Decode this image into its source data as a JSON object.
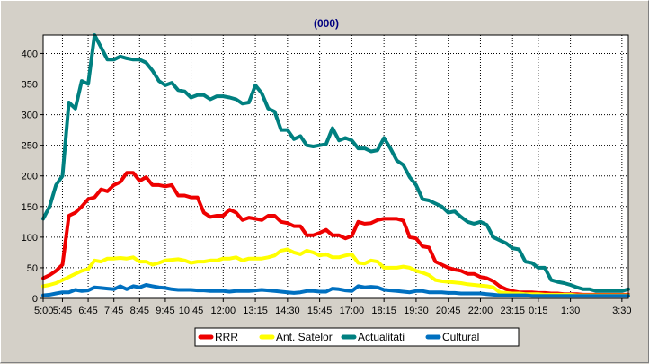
{
  "chart_data": {
    "type": "line",
    "title": "(000)",
    "xlabel": "",
    "ylabel": "",
    "ylim": [
      0,
      430
    ],
    "yticks": [
      0,
      50,
      100,
      150,
      200,
      250,
      300,
      350,
      400
    ],
    "grid": true,
    "legend_placement": "bottom",
    "x_tick_labels": [
      "5:00",
      "5:45",
      "6:45",
      "7:45",
      "8:45",
      "9:45",
      "10:45",
      "12:00",
      "13:15",
      "14:30",
      "15:45",
      "17:00",
      "18:15",
      "19:30",
      "20:45",
      "22:00",
      "23:15",
      "0:15",
      "1:30",
      "3:30"
    ],
    "x_tick_positions": [
      0,
      3,
      7,
      11,
      15,
      19,
      23,
      28,
      33,
      38,
      43,
      48,
      53,
      58,
      63,
      68,
      73,
      77,
      82,
      90
    ],
    "x_count": 92,
    "series": [
      {
        "name": "RRR",
        "color": "#ee0000",
        "values": [
          33,
          38,
          45,
          55,
          135,
          140,
          150,
          162,
          165,
          178,
          175,
          185,
          190,
          205,
          205,
          192,
          198,
          185,
          185,
          183,
          185,
          168,
          168,
          165,
          165,
          140,
          133,
          135,
          135,
          145,
          140,
          128,
          132,
          130,
          128,
          135,
          135,
          125,
          123,
          118,
          118,
          103,
          103,
          107,
          112,
          103,
          103,
          98,
          102,
          125,
          122,
          123,
          128,
          130,
          130,
          130,
          127,
          100,
          98,
          85,
          83,
          60,
          55,
          50,
          47,
          45,
          40,
          40,
          35,
          33,
          28,
          20,
          15,
          12,
          10,
          10,
          10,
          9,
          9,
          8,
          8,
          7,
          7,
          7,
          6,
          6,
          6,
          6,
          6,
          6,
          6,
          6
        ]
      },
      {
        "name": "Ant. Satelor",
        "color": "#ffff00",
        "values": [
          20,
          22,
          25,
          30,
          35,
          40,
          45,
          48,
          62,
          60,
          65,
          65,
          66,
          65,
          67,
          60,
          60,
          55,
          58,
          62,
          63,
          64,
          62,
          58,
          60,
          60,
          62,
          62,
          65,
          65,
          67,
          62,
          65,
          65,
          65,
          67,
          70,
          78,
          80,
          75,
          72,
          78,
          75,
          70,
          72,
          67,
          67,
          70,
          72,
          58,
          57,
          62,
          60,
          50,
          50,
          50,
          52,
          50,
          45,
          42,
          38,
          30,
          28,
          27,
          26,
          25,
          23,
          22,
          21,
          20,
          18,
          10,
          9,
          8,
          8,
          7,
          7,
          7,
          6,
          6,
          6,
          6,
          6,
          5,
          5,
          5,
          5,
          5,
          5,
          5,
          5,
          5
        ]
      },
      {
        "name": "Actualitati",
        "color": "#008080",
        "values": [
          130,
          150,
          185,
          200,
          320,
          310,
          355,
          350,
          430,
          410,
          390,
          390,
          395,
          392,
          390,
          390,
          385,
          372,
          355,
          348,
          352,
          340,
          338,
          328,
          332,
          332,
          325,
          330,
          330,
          328,
          325,
          318,
          320,
          348,
          335,
          310,
          305,
          275,
          275,
          260,
          265,
          250,
          248,
          250,
          252,
          278,
          258,
          262,
          258,
          245,
          245,
          240,
          242,
          262,
          245,
          225,
          218,
          198,
          185,
          162,
          160,
          155,
          150,
          140,
          142,
          133,
          125,
          122,
          125,
          120,
          100,
          95,
          90,
          82,
          80,
          60,
          58,
          50,
          50,
          30,
          27,
          25,
          22,
          18,
          15,
          15,
          12,
          12,
          12,
          12,
          12,
          15
        ]
      },
      {
        "name": "Cultural",
        "color": "#0070c0",
        "values": [
          5,
          6,
          8,
          10,
          10,
          14,
          12,
          13,
          18,
          17,
          16,
          15,
          20,
          15,
          20,
          18,
          22,
          20,
          18,
          17,
          15,
          14,
          14,
          14,
          13,
          13,
          12,
          12,
          12,
          11,
          12,
          12,
          12,
          13,
          14,
          13,
          12,
          11,
          10,
          9,
          10,
          12,
          12,
          11,
          11,
          16,
          15,
          13,
          12,
          20,
          18,
          19,
          18,
          14,
          13,
          12,
          11,
          10,
          12,
          12,
          10,
          10,
          10,
          9,
          9,
          8,
          8,
          8,
          8,
          7,
          6,
          5,
          5,
          5,
          5,
          5,
          4,
          4,
          4,
          4,
          4,
          4,
          4,
          4,
          4,
          4,
          4,
          4,
          4,
          4,
          4,
          4
        ]
      }
    ]
  }
}
